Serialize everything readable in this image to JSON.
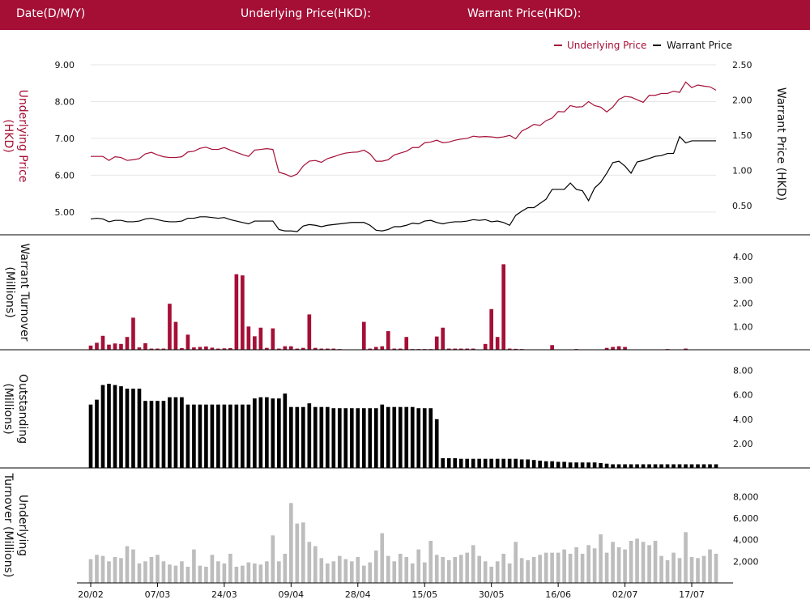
{
  "header": {
    "date_label": "Date(D/M/Y)",
    "underlying_label": "Underlying Price(HKD):",
    "warrant_label": "Warrant Price(HKD):"
  },
  "colors": {
    "header_bg": "#a50f36",
    "underlying": "#a50f36",
    "warrant": "#000000",
    "outstanding": "#000000",
    "underlying_turnover": "#bdbdbd",
    "grid": "#e6e6e6"
  },
  "chart_data": [
    {
      "type": "line",
      "legend_placement": "top-right",
      "legend": [
        "Underlying Price",
        "Warrant Price"
      ],
      "ylabel": "Underlying Price (HKD)",
      "ylabel_right": "Warrant  Price (HKD)",
      "ylim": [
        4.6,
        9.0
      ],
      "ylim_right": [
        0.2,
        2.5
      ],
      "yticks": [
        "9.00",
        "8.00",
        "7.00",
        "6.00",
        "5.00"
      ],
      "yticks_right": [
        "2.50",
        "2.00",
        "1.50",
        "1.00",
        "0.50"
      ],
      "grid": true,
      "series": [
        {
          "name": "Underlying Price",
          "axis": "left",
          "values": [
            6.51,
            6.51,
            6.51,
            6.4,
            6.5,
            6.48,
            6.4,
            6.42,
            6.45,
            6.58,
            6.62,
            6.55,
            6.5,
            6.48,
            6.48,
            6.5,
            6.63,
            6.65,
            6.73,
            6.76,
            6.7,
            6.7,
            6.75,
            6.68,
            6.62,
            6.56,
            6.51,
            6.68,
            6.7,
            6.72,
            6.7,
            6.08,
            6.03,
            5.96,
            6.03,
            6.25,
            6.38,
            6.4,
            6.35,
            6.45,
            6.5,
            6.56,
            6.6,
            6.62,
            6.63,
            6.68,
            6.58,
            6.38,
            6.38,
            6.42,
            6.55,
            6.6,
            6.65,
            6.75,
            6.75,
            6.88,
            6.9,
            6.95,
            6.88,
            6.9,
            6.95,
            6.98,
            7.0,
            7.06,
            7.04,
            7.05,
            7.04,
            7.02,
            7.04,
            7.08,
            6.99,
            7.2,
            7.28,
            7.38,
            7.35,
            7.48,
            7.55,
            7.73,
            7.72,
            7.89,
            7.85,
            7.86,
            8.0,
            7.89,
            7.85,
            7.72,
            7.85,
            8.06,
            8.14,
            8.12,
            8.05,
            7.98,
            8.17,
            8.17,
            8.22,
            8.22,
            8.28,
            8.25,
            8.53,
            8.38,
            8.45,
            8.42,
            8.4,
            8.31
          ]
        },
        {
          "name": "Warrant Price",
          "axis": "right",
          "values": [
            0.31,
            0.32,
            0.31,
            0.27,
            0.29,
            0.29,
            0.27,
            0.27,
            0.28,
            0.31,
            0.32,
            0.3,
            0.28,
            0.27,
            0.27,
            0.28,
            0.32,
            0.32,
            0.34,
            0.34,
            0.33,
            0.32,
            0.33,
            0.3,
            0.28,
            0.26,
            0.24,
            0.28,
            0.28,
            0.28,
            0.28,
            0.16,
            0.14,
            0.14,
            0.13,
            0.21,
            0.23,
            0.22,
            0.2,
            0.22,
            0.23,
            0.24,
            0.25,
            0.26,
            0.26,
            0.26,
            0.22,
            0.15,
            0.14,
            0.16,
            0.2,
            0.2,
            0.22,
            0.25,
            0.24,
            0.28,
            0.29,
            0.26,
            0.24,
            0.26,
            0.27,
            0.27,
            0.28,
            0.3,
            0.29,
            0.3,
            0.27,
            0.28,
            0.26,
            0.22,
            0.36,
            0.42,
            0.47,
            0.47,
            0.53,
            0.59,
            0.73,
            0.73,
            0.73,
            0.82,
            0.73,
            0.71,
            0.57,
            0.75,
            0.83,
            0.96,
            1.11,
            1.13,
            1.06,
            0.96,
            1.12,
            1.14,
            1.17,
            1.2,
            1.21,
            1.24,
            1.24,
            1.48,
            1.39,
            1.42,
            1.42,
            1.42,
            1.42,
            1.42
          ]
        }
      ]
    },
    {
      "type": "bar",
      "ylabel": "Warrant  Turnover (Millions)",
      "ylim": [
        0,
        4.6
      ],
      "yticks": [
        "4.00",
        "3.00",
        "2.00",
        "1.00"
      ],
      "series": [
        {
          "name": "Warrant Turnover",
          "values": [
            0.18,
            0.3,
            0.6,
            0.22,
            0.27,
            0.25,
            0.55,
            1.38,
            0.1,
            0.28,
            0.05,
            0.05,
            0.05,
            1.98,
            1.2,
            0.07,
            0.65,
            0.1,
            0.12,
            0.14,
            0.09,
            0.05,
            0.06,
            0.07,
            3.25,
            3.2,
            1.0,
            0.58,
            0.95,
            0.08,
            0.92,
            0.05,
            0.15,
            0.15,
            0.05,
            0.08,
            1.52,
            0.08,
            0.05,
            0.05,
            0.05,
            0.03,
            0,
            0,
            0,
            1.2,
            0.05,
            0.12,
            0.15,
            0.8,
            0.05,
            0.05,
            0.55,
            0.03,
            0.03,
            0.03,
            0.03,
            0.57,
            0.95,
            0.05,
            0.05,
            0.05,
            0.05,
            0.05,
            0,
            0.25,
            1.75,
            0.55,
            3.68,
            0.05,
            0.04,
            0.03,
            0,
            0,
            0,
            0,
            0.2,
            0,
            0,
            0,
            0.03,
            0,
            0,
            0,
            0,
            0.08,
            0.12,
            0.15,
            0.12,
            0,
            0,
            0,
            0,
            0,
            0,
            0.03,
            0,
            0,
            0.05,
            0,
            0,
            0,
            0,
            0
          ]
        }
      ]
    },
    {
      "type": "bar",
      "ylabel": "Outstanding (Millions)",
      "ylim": [
        0,
        8.5
      ],
      "yticks": [
        "8.00",
        "6.00",
        "4.00",
        "2.00"
      ],
      "series": [
        {
          "name": "Outstanding",
          "values": [
            5.2,
            5.6,
            6.8,
            6.9,
            6.8,
            6.7,
            6.5,
            6.5,
            6.5,
            5.5,
            5.5,
            5.5,
            5.5,
            5.8,
            5.8,
            5.8,
            5.2,
            5.2,
            5.2,
            5.2,
            5.2,
            5.2,
            5.2,
            5.2,
            5.2,
            5.2,
            5.2,
            5.7,
            5.8,
            5.8,
            5.7,
            5.7,
            6.1,
            5.0,
            5.0,
            5.0,
            5.3,
            5.0,
            5.0,
            5.0,
            4.9,
            4.9,
            4.9,
            4.9,
            4.9,
            4.9,
            4.9,
            4.9,
            5.2,
            5.0,
            5.0,
            5.0,
            5.0,
            5.0,
            4.9,
            4.9,
            4.9,
            4.0,
            0.8,
            0.8,
            0.8,
            0.75,
            0.75,
            0.75,
            0.75,
            0.75,
            0.75,
            0.75,
            0.75,
            0.75,
            0.75,
            0.7,
            0.7,
            0.65,
            0.6,
            0.55,
            0.55,
            0.5,
            0.5,
            0.45,
            0.45,
            0.45,
            0.45,
            0.45,
            0.4,
            0.35,
            0.3,
            0.3,
            0.3,
            0.3,
            0.3,
            0.3,
            0.3,
            0.3,
            0.3,
            0.3,
            0.3,
            0.3,
            0.3,
            0.3,
            0.3,
            0.3,
            0.3,
            0.3
          ]
        }
      ]
    },
    {
      "type": "bar",
      "ylabel": "Underlying Turnover (Millions)",
      "ylim": [
        0,
        9000
      ],
      "yticks": [
        "8,000",
        "6,000",
        "4,000",
        "2,000"
      ],
      "x_tick_labels": [
        "20/02",
        "07/03",
        "24/03",
        "09/04",
        "28/04",
        "15/05",
        "30/05",
        "16/06",
        "02/07",
        "17/07"
      ],
      "x_tick_indices": [
        0,
        11,
        22,
        33,
        44,
        55,
        66,
        77,
        88,
        99
      ],
      "series": [
        {
          "name": "Underlying Turnover",
          "values": [
            2200,
            2600,
            2500,
            2000,
            2400,
            2300,
            3400,
            3100,
            1800,
            2000,
            2400,
            2600,
            2000,
            1700,
            1600,
            2000,
            1500,
            3100,
            1600,
            1500,
            2600,
            2000,
            1800,
            2700,
            1500,
            1600,
            1900,
            1800,
            1700,
            2000,
            4400,
            2000,
            2700,
            7400,
            5500,
            5600,
            3800,
            3400,
            2300,
            1800,
            2000,
            2500,
            2200,
            2000,
            2400,
            1600,
            1900,
            3000,
            4600,
            2500,
            2000,
            2700,
            2400,
            1800,
            3100,
            1900,
            3900,
            2600,
            2400,
            2100,
            2400,
            2600,
            2800,
            3500,
            2500,
            2000,
            1500,
            2000,
            2700,
            1800,
            3800,
            2300,
            2100,
            2400,
            2600,
            2800,
            2800,
            2800,
            3100,
            2700,
            3300,
            2700,
            3500,
            3200,
            4500,
            2800,
            3800,
            3300,
            3100,
            3900,
            4100,
            3800,
            3500,
            3900,
            2500,
            2100,
            2800,
            2300,
            4700,
            2400,
            2300,
            2500,
            3100,
            2700
          ]
        }
      ]
    }
  ]
}
